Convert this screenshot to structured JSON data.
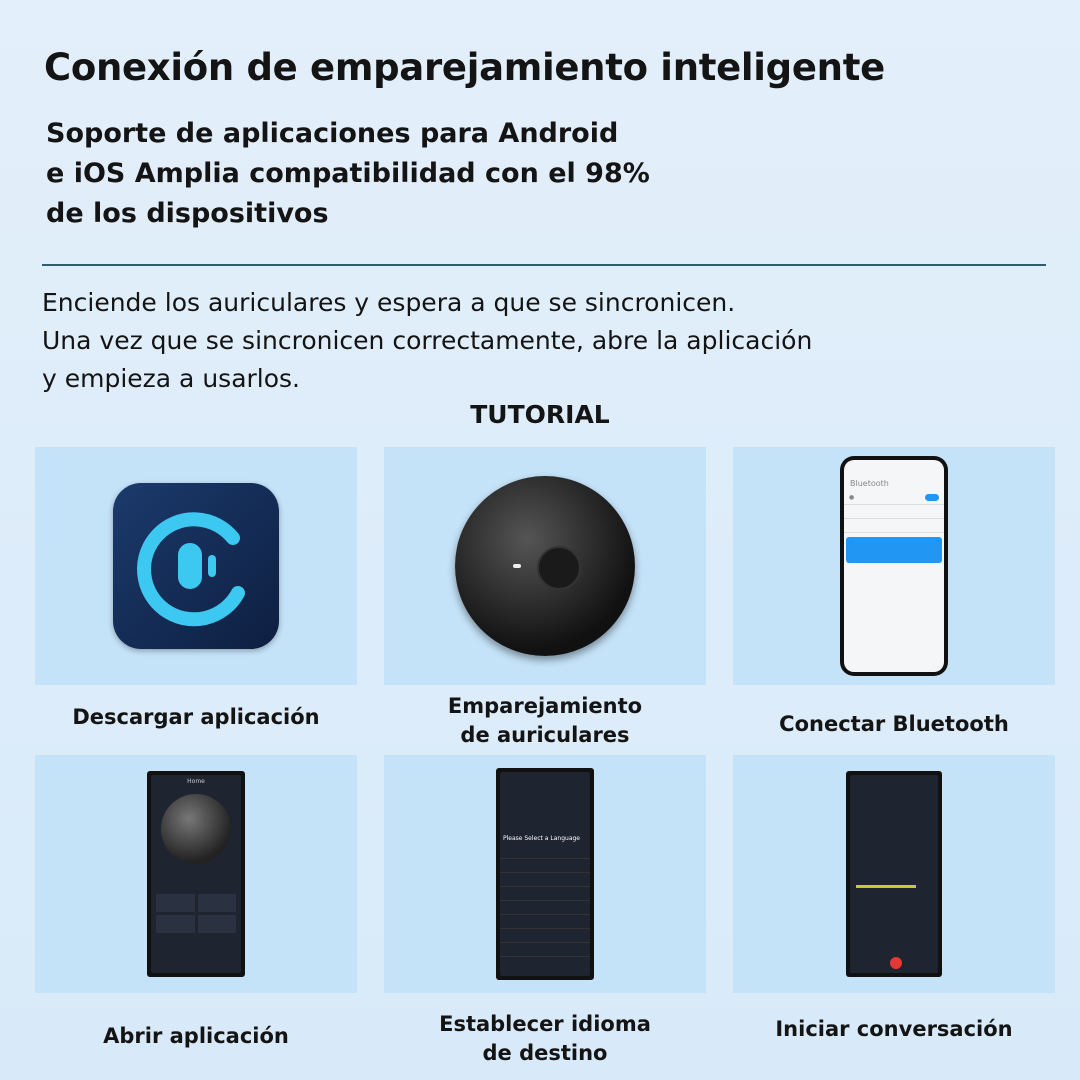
{
  "header": {
    "title": "Conexión de emparejamiento inteligente",
    "subtitle_lines": [
      "Soporte de aplicaciones para Android",
      "e iOS Amplia compatibilidad con el 98%",
      "de los dispositivos"
    ]
  },
  "body_lines": [
    "Enciende los auriculares y espera a que se sincronicen.",
    "Una vez que se sincronicen correctamente, abre la aplicación",
    "y empieza a usarlos."
  ],
  "tutorial_label": "TUTORIAL",
  "steps": [
    {
      "label_lines": [
        "Descargar aplicación"
      ]
    },
    {
      "label_lines": [
        "Emparejamiento",
        "de auriculares"
      ]
    },
    {
      "label_lines": [
        "Conectar Bluetooth"
      ]
    },
    {
      "label_lines": [
        "Abrir aplicación"
      ]
    },
    {
      "label_lines": [
        "Establecer idioma",
        "de destino"
      ]
    },
    {
      "label_lines": [
        "Iniciar conversación"
      ]
    }
  ],
  "screens": {
    "bluetooth": "Bluetooth",
    "home": "Home",
    "language": "Please Select a Language"
  },
  "colors": {
    "card": "#c4e2f8",
    "divider": "#2f5d6e",
    "accent": "#2196f3",
    "app_icon_ring": "#3cc8f0"
  }
}
